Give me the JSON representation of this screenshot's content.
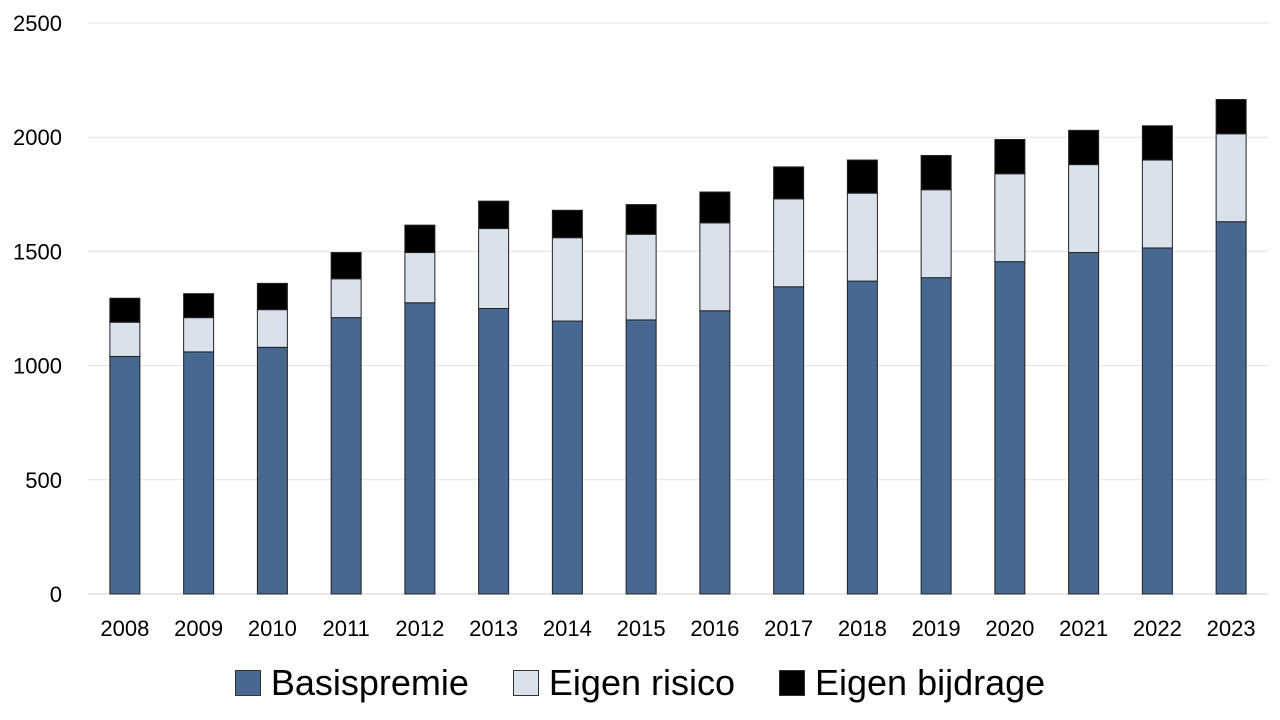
{
  "chart_data": {
    "type": "bar",
    "stacked": true,
    "title": "",
    "xlabel": "",
    "ylabel": "",
    "ylim": [
      0,
      2500
    ],
    "yticks": [
      0,
      500,
      1000,
      1500,
      2000,
      2500
    ],
    "grid": true,
    "legend_position": "bottom",
    "categories": [
      "2008",
      "2009",
      "2010",
      "2011",
      "2012",
      "2013",
      "2014",
      "2015",
      "2016",
      "2017",
      "2018",
      "2019",
      "2020",
      "2021",
      "2022",
      "2023"
    ],
    "series": [
      {
        "name": "Basispremie",
        "color": "#476890",
        "values": [
          1040,
          1060,
          1080,
          1210,
          1275,
          1250,
          1195,
          1200,
          1240,
          1345,
          1370,
          1385,
          1455,
          1495,
          1515,
          1630
        ]
      },
      {
        "name": "Eigen risico",
        "color": "#d9e2ec",
        "values": [
          150,
          150,
          165,
          170,
          220,
          350,
          365,
          375,
          385,
          385,
          385,
          385,
          385,
          385,
          385,
          385
        ]
      },
      {
        "name": "Eigen bijdrage",
        "color": "#000000",
        "values": [
          105,
          105,
          115,
          115,
          120,
          120,
          120,
          130,
          135,
          140,
          145,
          150,
          150,
          150,
          150,
          150
        ]
      }
    ]
  }
}
